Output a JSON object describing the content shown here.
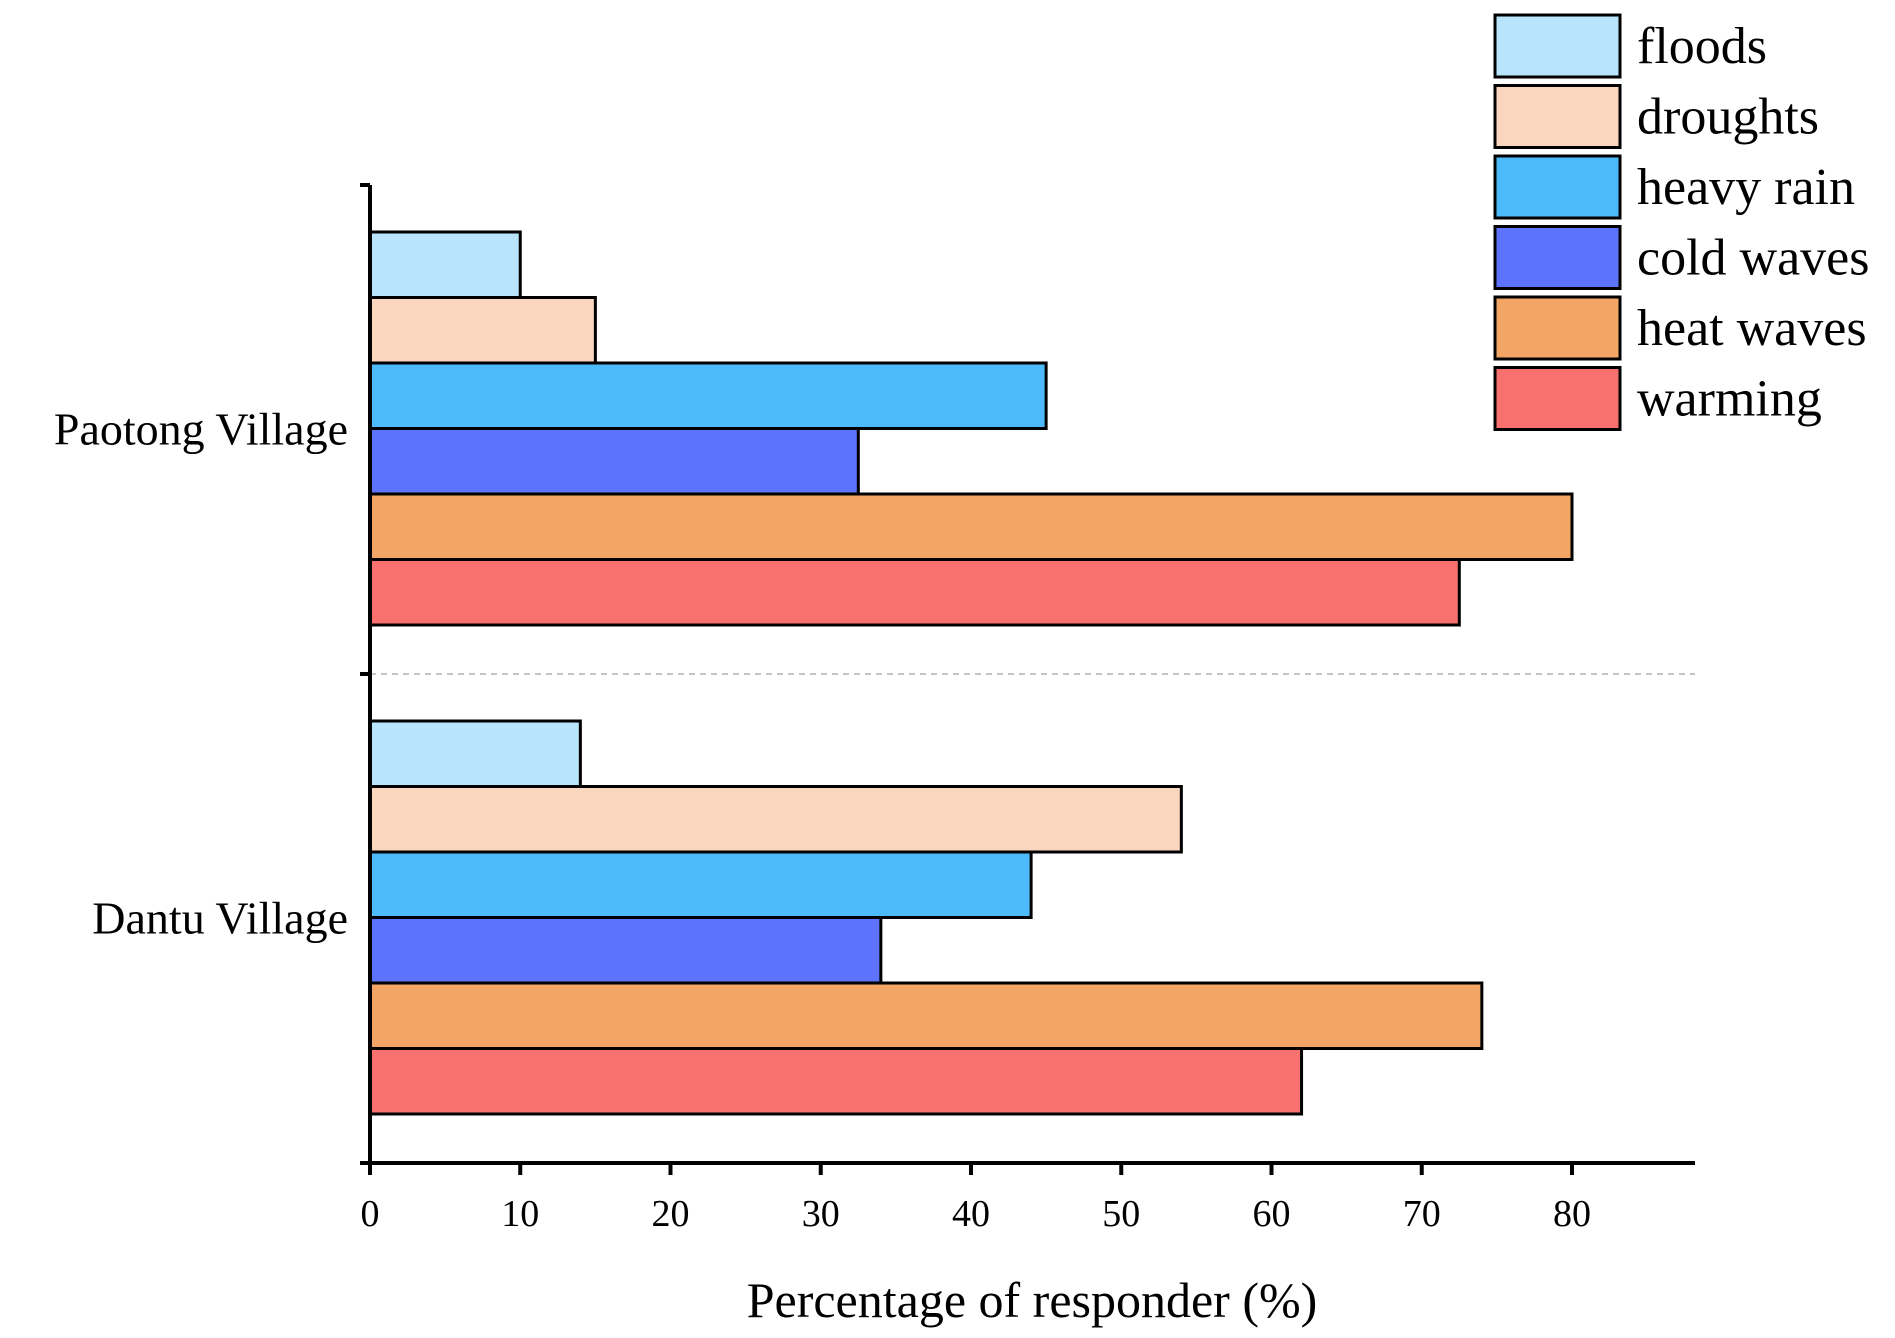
{
  "chart_data": {
    "type": "bar",
    "orientation": "horizontal",
    "categories": [
      "Paotong Village",
      "Dantu Village"
    ],
    "series": [
      {
        "name": "floods",
        "color": "#b8e4fc",
        "values": [
          10,
          14
        ]
      },
      {
        "name": "droughts",
        "color": "#f9d6bd",
        "values": [
          15,
          54
        ]
      },
      {
        "name": "heavy rain",
        "color": "#4dbbfb",
        "values": [
          45,
          44
        ]
      },
      {
        "name": "cold waves",
        "color": "#5d72fd",
        "values": [
          32.5,
          34
        ]
      },
      {
        "name": "heat waves",
        "color": "#f2a564",
        "values": [
          80,
          74
        ]
      },
      {
        "name": "warming",
        "color": "#f8716f",
        "values": [
          72.5,
          62
        ]
      }
    ],
    "title": "",
    "xlabel": "Percentage of responder (%)",
    "ylabel": "",
    "xlim": [
      0,
      88
    ],
    "xticks": [
      0,
      10,
      20,
      30,
      40,
      50,
      60,
      70,
      80
    ],
    "grid": false,
    "legend": "top-right"
  }
}
